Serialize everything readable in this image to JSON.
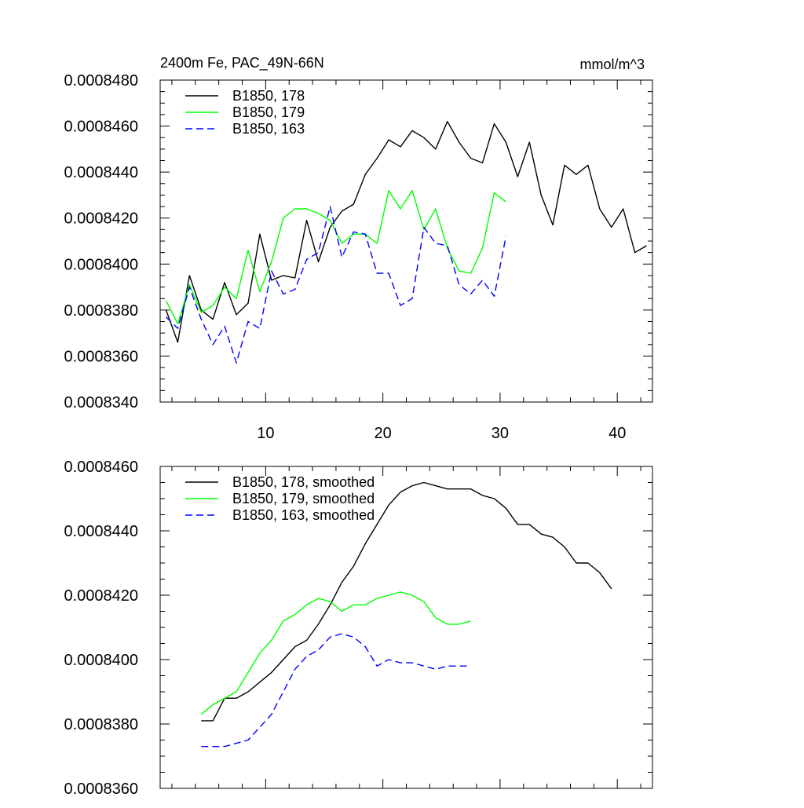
{
  "chart_data": [
    {
      "type": "line",
      "title": "2400m Fe, PAC_49N-66N",
      "units": "mmol/m^3",
      "xlabel": "",
      "ylabel": "",
      "xlim": [
        1,
        43
      ],
      "ylim": [
        0.000834,
        0.000848
      ],
      "xticks": [
        10,
        20,
        30,
        40
      ],
      "xtick_labels": [
        "10",
        "20",
        "30",
        "40"
      ],
      "yticks": [
        0.000834,
        0.000836,
        0.000838,
        0.00084,
        0.000842,
        0.000844,
        0.000846,
        0.000848
      ],
      "ytick_labels": [
        "0.0008340",
        "0.0008360",
        "0.0008380",
        "0.0008400",
        "0.0008420",
        "0.0008440",
        "0.0008460",
        "0.0008480"
      ],
      "legend_position": "top-left",
      "series": [
        {
          "name": "B1850, 178",
          "color": "#000000",
          "dash": "solid",
          "x": [
            1.5,
            2.5,
            3.5,
            4.5,
            5.5,
            6.5,
            7.5,
            8.5,
            9.5,
            10.5,
            11.5,
            12.5,
            13.5,
            14.5,
            15.5,
            16.5,
            17.5,
            18.5,
            19.5,
            20.5,
            21.5,
            22.5,
            23.5,
            24.5,
            25.5,
            26.5,
            27.5,
            28.5,
            29.5,
            30.5,
            31.5,
            32.5,
            33.5,
            34.5,
            35.5,
            36.5,
            37.5,
            38.5,
            39.5,
            40.5,
            41.5,
            42.5
          ],
          "values": [
            0.000838,
            0.0008366,
            0.0008395,
            0.000838,
            0.0008376,
            0.0008392,
            0.0008378,
            0.0008383,
            0.0008413,
            0.0008393,
            0.0008395,
            0.0008394,
            0.0008419,
            0.0008401,
            0.0008416,
            0.0008423,
            0.0008426,
            0.0008439,
            0.0008446,
            0.0008454,
            0.0008451,
            0.0008458,
            0.0008455,
            0.000845,
            0.0008462,
            0.0008453,
            0.0008446,
            0.0008444,
            0.0008461,
            0.0008453,
            0.0008438,
            0.0008453,
            0.000843,
            0.0008417,
            0.0008443,
            0.0008439,
            0.0008443,
            0.0008424,
            0.0008416,
            0.0008424,
            0.0008405,
            0.0008408
          ]
        },
        {
          "name": "B1850, 179",
          "color": "#00ff00",
          "dash": "solid",
          "x": [
            1.5,
            2.5,
            3.5,
            4.5,
            5.5,
            6.5,
            7.5,
            8.5,
            9.5,
            10.5,
            11.5,
            12.5,
            13.5,
            14.5,
            15.5,
            16.5,
            17.5,
            18.5,
            19.5,
            20.5,
            21.5,
            22.5,
            23.5,
            24.5,
            25.5,
            26.5,
            27.5,
            28.5,
            29.5,
            30.5
          ],
          "values": [
            0.0008384,
            0.0008374,
            0.0008391,
            0.0008379,
            0.0008382,
            0.000839,
            0.0008385,
            0.0008406,
            0.0008388,
            0.0008401,
            0.000842,
            0.0008424,
            0.0008424,
            0.0008422,
            0.0008419,
            0.0008409,
            0.0008413,
            0.0008413,
            0.0008409,
            0.0008432,
            0.0008424,
            0.0008432,
            0.0008415,
            0.0008424,
            0.0008407,
            0.0008397,
            0.0008396,
            0.0008407,
            0.0008431,
            0.0008427
          ]
        },
        {
          "name": "B1850, 163",
          "color": "#0000ff",
          "dash": "dashed",
          "x": [
            1.5,
            2.5,
            3.5,
            4.5,
            5.5,
            6.5,
            7.5,
            8.5,
            9.5,
            10.5,
            11.5,
            12.5,
            13.5,
            14.5,
            15.5,
            16.5,
            17.5,
            18.5,
            19.5,
            20.5,
            21.5,
            22.5,
            23.5,
            24.5,
            25.5,
            26.5,
            27.5,
            28.5,
            29.5,
            30.5
          ],
          "values": [
            0.0008377,
            0.0008372,
            0.000839,
            0.0008376,
            0.0008365,
            0.0008373,
            0.0008357,
            0.0008375,
            0.0008372,
            0.0008397,
            0.0008387,
            0.0008389,
            0.0008402,
            0.0008405,
            0.0008425,
            0.0008403,
            0.0008414,
            0.0008413,
            0.0008396,
            0.0008396,
            0.0008382,
            0.0008385,
            0.0008416,
            0.0008409,
            0.0008408,
            0.0008391,
            0.0008387,
            0.0008393,
            0.0008386,
            0.0008412
          ]
        }
      ]
    },
    {
      "type": "line",
      "title": "",
      "xlabel": "",
      "ylabel": "",
      "xlim": [
        1,
        43
      ],
      "ylim": [
        0.000836,
        0.000846
      ],
      "xticks": [
        10,
        20,
        30,
        40
      ],
      "xtick_labels": [],
      "yticks": [
        0.000836,
        0.000838,
        0.00084,
        0.000842,
        0.000844,
        0.000846
      ],
      "ytick_labels": [
        "0.0008360",
        "0.0008380",
        "0.0008400",
        "0.0008420",
        "0.0008440",
        "0.0008460"
      ],
      "legend_position": "top-left",
      "series": [
        {
          "name": "B1850, 178, smoothed",
          "color": "#000000",
          "dash": "solid",
          "x": [
            4.5,
            5.5,
            6.5,
            7.5,
            8.5,
            9.5,
            10.5,
            11.5,
            12.5,
            13.5,
            14.5,
            15.5,
            16.5,
            17.5,
            18.5,
            19.5,
            20.5,
            21.5,
            22.5,
            23.5,
            24.5,
            25.5,
            26.5,
            27.5,
            28.5,
            29.5,
            30.5,
            31.5,
            32.5,
            33.5,
            34.5,
            35.5,
            36.5,
            37.5,
            38.5,
            39.5
          ],
          "values": [
            0.0008381,
            0.0008381,
            0.0008388,
            0.0008388,
            0.000839,
            0.0008393,
            0.0008396,
            0.00084,
            0.0008404,
            0.0008406,
            0.0008411,
            0.0008417,
            0.0008424,
            0.0008429,
            0.0008436,
            0.0008442,
            0.0008448,
            0.0008452,
            0.0008454,
            0.0008455,
            0.0008454,
            0.0008453,
            0.0008453,
            0.0008453,
            0.0008451,
            0.000845,
            0.0008447,
            0.0008442,
            0.0008442,
            0.0008439,
            0.0008438,
            0.0008435,
            0.000843,
            0.000843,
            0.0008427,
            0.0008422
          ]
        },
        {
          "name": "B1850, 179, smoothed",
          "color": "#00ff00",
          "dash": "solid",
          "x": [
            4.5,
            5.5,
            6.5,
            7.5,
            8.5,
            9.5,
            10.5,
            11.5,
            12.5,
            13.5,
            14.5,
            15.5,
            16.5,
            17.5,
            18.5,
            19.5,
            20.5,
            21.5,
            22.5,
            23.5,
            24.5,
            25.5,
            26.5,
            27.5
          ],
          "values": [
            0.0008383,
            0.0008386,
            0.0008388,
            0.000839,
            0.0008396,
            0.0008402,
            0.0008406,
            0.0008412,
            0.0008414,
            0.0008417,
            0.0008419,
            0.0008418,
            0.0008415,
            0.0008417,
            0.0008417,
            0.0008419,
            0.000842,
            0.0008421,
            0.000842,
            0.0008418,
            0.0008413,
            0.0008411,
            0.0008411,
            0.0008412
          ]
        },
        {
          "name": "B1850, 163, smoothed",
          "color": "#0000ff",
          "dash": "dashed",
          "x": [
            4.5,
            5.5,
            6.5,
            7.5,
            8.5,
            9.5,
            10.5,
            11.5,
            12.5,
            13.5,
            14.5,
            15.5,
            16.5,
            17.5,
            18.5,
            19.5,
            20.5,
            21.5,
            22.5,
            23.5,
            24.5,
            25.5,
            26.5,
            27.5
          ],
          "values": [
            0.0008373,
            0.0008373,
            0.0008373,
            0.0008374,
            0.0008375,
            0.0008379,
            0.0008383,
            0.000839,
            0.0008397,
            0.0008401,
            0.0008403,
            0.0008407,
            0.0008408,
            0.0008407,
            0.0008404,
            0.0008398,
            0.00084,
            0.0008399,
            0.0008399,
            0.0008398,
            0.0008397,
            0.0008398,
            0.0008398,
            0.0008398
          ]
        }
      ]
    }
  ]
}
